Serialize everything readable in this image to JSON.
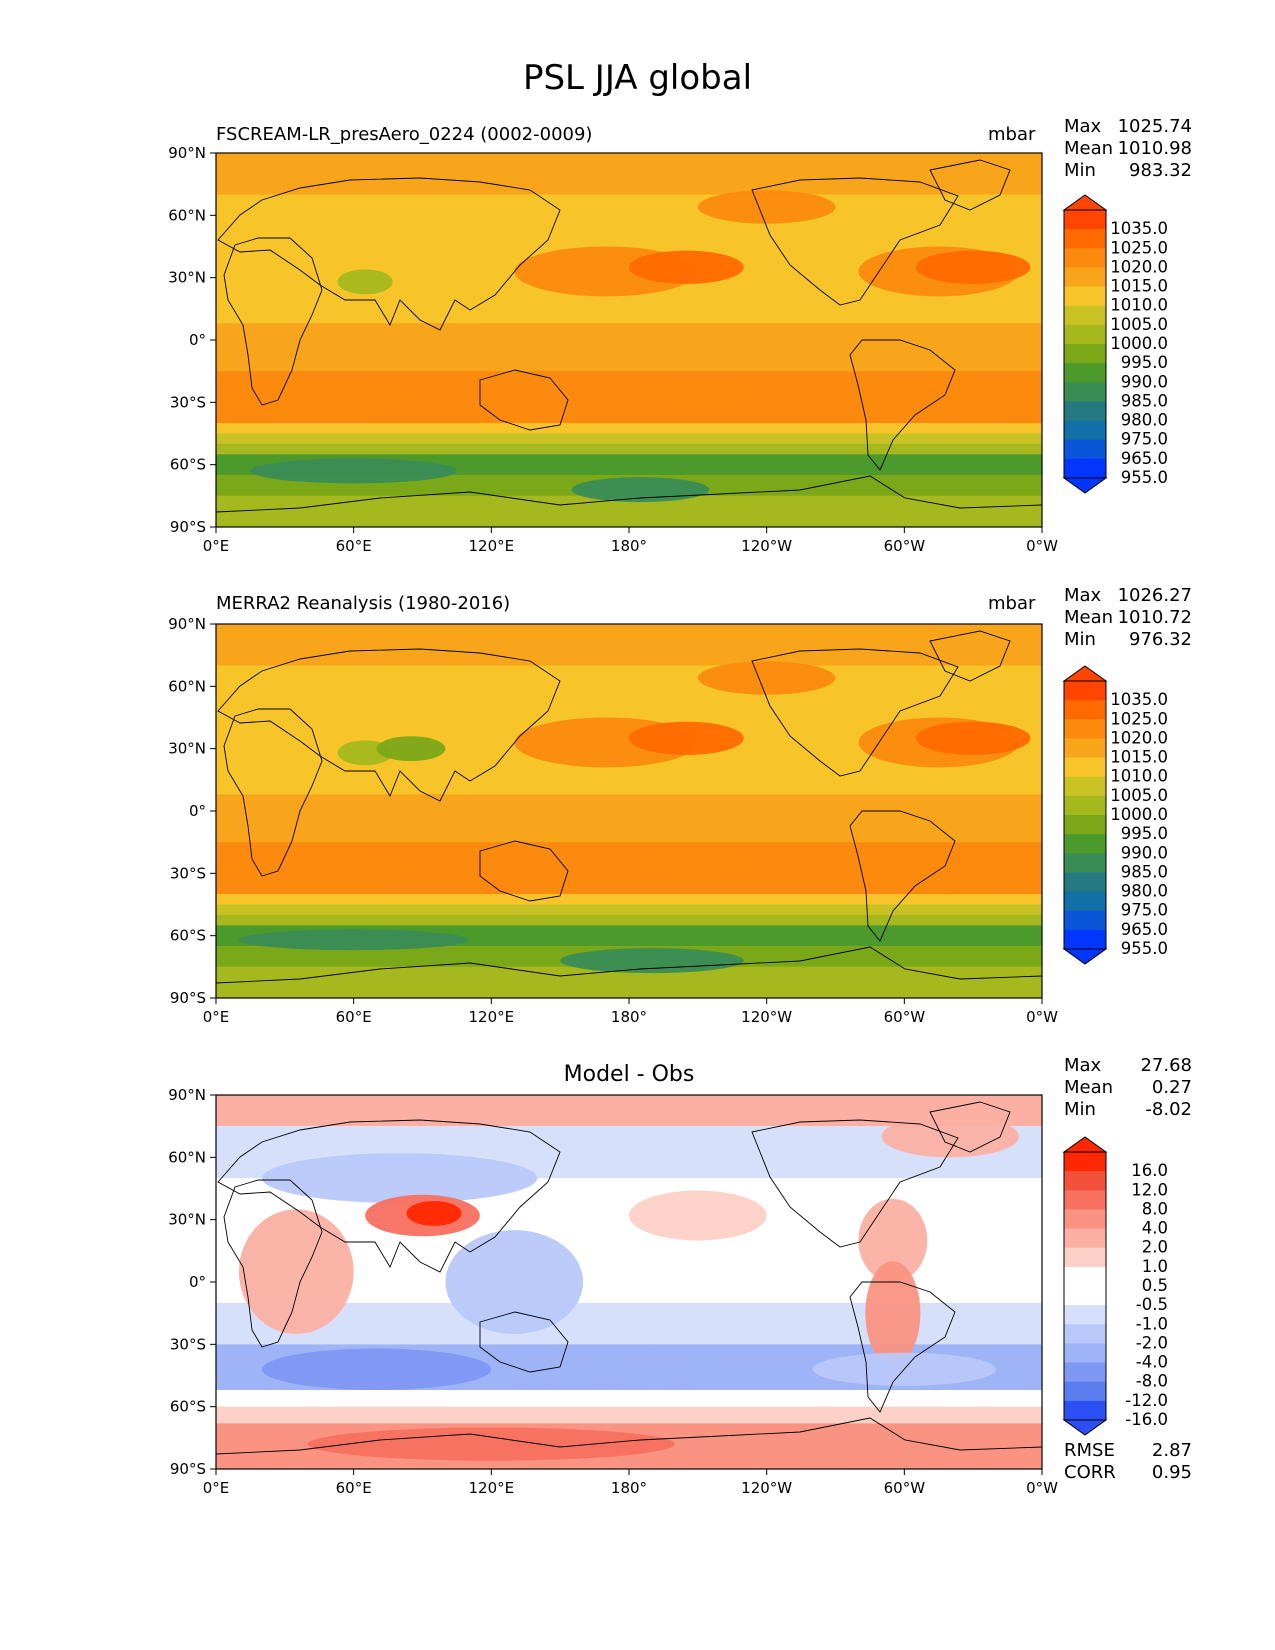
{
  "figure": {
    "title": "PSL JJA global"
  },
  "chart_data": [
    {
      "type": "heatmap",
      "title_left": "FSCREAM-LR_presAero_0224 (0002-0009)",
      "units": "mbar",
      "stats": [
        {
          "label": "Max",
          "value": "1025.74"
        },
        {
          "label": "Mean",
          "value": "1010.98"
        },
        {
          "label": "Min",
          "value": "983.32"
        }
      ],
      "xticks": [
        "0°E",
        "60°E",
        "120°E",
        "180°",
        "120°W",
        "60°W",
        "0°W"
      ],
      "yticks": [
        "90°N",
        "60°N",
        "30°N",
        "0°",
        "30°S",
        "60°S",
        "90°S"
      ],
      "xlim": [
        0,
        360
      ],
      "ylim": [
        -90,
        90
      ],
      "colorbar_levels": [
        "1035.0",
        "1025.0",
        "1020.0",
        "1015.0",
        "1010.0",
        "1005.0",
        "1000.0",
        "995.0",
        "990.0",
        "985.0",
        "980.0",
        "975.0",
        "965.0",
        "955.0"
      ],
      "colorbar_colors": [
        "#ff4500",
        "#ff6a00",
        "#fb8a0e",
        "#f9a51b",
        "#f7c52a",
        "#c8c225",
        "#a5b81d",
        "#7aa818",
        "#4d9a2c",
        "#3a8c55",
        "#247a80",
        "#1170a8",
        "#0a55d8",
        "#0036ff"
      ]
    },
    {
      "type": "heatmap",
      "title_left": "MERRA2 Reanalysis (1980-2016)",
      "units": "mbar",
      "stats": [
        {
          "label": "Max",
          "value": "1026.27"
        },
        {
          "label": "Mean",
          "value": "1010.72"
        },
        {
          "label": "Min",
          "value": "976.32"
        }
      ],
      "xticks": [
        "0°E",
        "60°E",
        "120°E",
        "180°",
        "120°W",
        "60°W",
        "0°W"
      ],
      "yticks": [
        "90°N",
        "60°N",
        "30°N",
        "0°",
        "30°S",
        "60°S",
        "90°S"
      ],
      "xlim": [
        0,
        360
      ],
      "ylim": [
        -90,
        90
      ],
      "colorbar_levels": [
        "1035.0",
        "1025.0",
        "1020.0",
        "1015.0",
        "1010.0",
        "1005.0",
        "1000.0",
        "995.0",
        "990.0",
        "985.0",
        "980.0",
        "975.0",
        "965.0",
        "955.0"
      ],
      "colorbar_colors": [
        "#ff4500",
        "#ff6a00",
        "#fb8a0e",
        "#f9a51b",
        "#f7c52a",
        "#c8c225",
        "#a5b81d",
        "#7aa818",
        "#4d9a2c",
        "#3a8c55",
        "#247a80",
        "#1170a8",
        "#0a55d8",
        "#0036ff"
      ]
    },
    {
      "type": "heatmap",
      "title_center": "Model - Obs",
      "stats": [
        {
          "label": "Max",
          "value": "27.68"
        },
        {
          "label": "Mean",
          "value": "0.27"
        },
        {
          "label": "Min",
          "value": "-8.02"
        }
      ],
      "extra_stats": [
        {
          "label": "RMSE",
          "value": "2.87"
        },
        {
          "label": "CORR",
          "value": "0.95"
        }
      ],
      "xticks": [
        "0°E",
        "60°E",
        "120°E",
        "180°",
        "120°W",
        "60°W",
        "0°W"
      ],
      "yticks": [
        "90°N",
        "60°N",
        "30°N",
        "0°",
        "30°S",
        "60°S",
        "90°S"
      ],
      "xlim": [
        0,
        360
      ],
      "ylim": [
        -90,
        90
      ],
      "colorbar_levels": [
        "16.0",
        "12.0",
        "8.0",
        "4.0",
        "2.0",
        "1.0",
        "0.5",
        "-0.5",
        "-1.0",
        "-2.0",
        "-4.0",
        "-8.0",
        "-12.0",
        "-16.0"
      ],
      "colorbar_colors": [
        "#ff2800",
        "#f4513b",
        "#f87060",
        "#fa9382",
        "#fbb0a3",
        "#fcd0c6",
        "#ffffff",
        "#ffffff",
        "#d7e0fb",
        "#b8c8fa",
        "#9fb3f7",
        "#7f98f3",
        "#5a7ef0",
        "#2c4ff5"
      ]
    }
  ]
}
